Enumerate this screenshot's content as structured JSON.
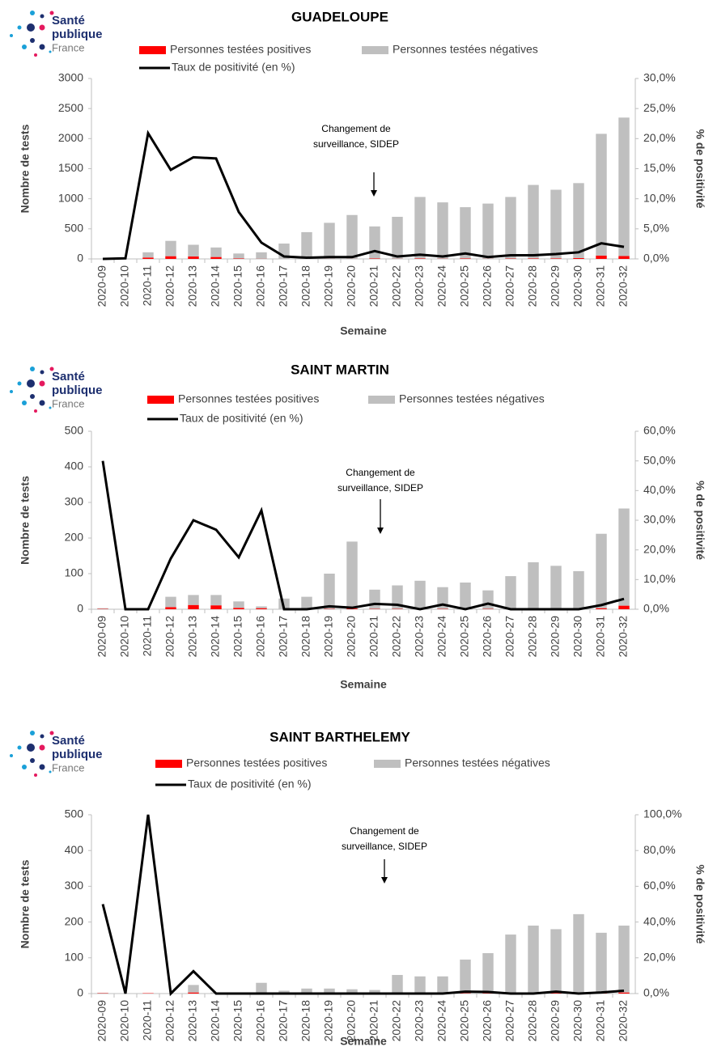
{
  "logo": [
    "Santé",
    "publique",
    "France"
  ],
  "chart_data": [
    {
      "type": "bar",
      "title": "GUADELOUPE",
      "x_label": "Semaine",
      "y_label": "Nombre de tests",
      "y2_label": "% de positivité",
      "annotation": [
        "Changement de",
        "surveillance, SIDEP"
      ],
      "categories": [
        "2020-09",
        "2020-10",
        "2020-11",
        "2020-12",
        "2020-13",
        "2020-14",
        "2020-15",
        "2020-16",
        "2020-17",
        "2020-18",
        "2020-19",
        "2020-20",
        "2020-21",
        "2020-22",
        "2020-23",
        "2020-24",
        "2020-25",
        "2020-26",
        "2020-27",
        "2020-28",
        "2020-29",
        "2020-30",
        "2020-31",
        "2020-32"
      ],
      "ylim": [
        0,
        3000
      ],
      "yticks": [
        0,
        500,
        1000,
        1500,
        2000,
        2500,
        3000
      ],
      "y2lim": [
        0,
        30
      ],
      "y2ticks": [
        {
          "value": 0,
          "label": "0,0%"
        },
        {
          "value": 5,
          "label": "5,0%"
        },
        {
          "value": 10,
          "label": "10,0%"
        },
        {
          "value": 15,
          "label": "15,0%"
        },
        {
          "value": 20,
          "label": "20,0%"
        },
        {
          "value": 25,
          "label": "25,0%"
        },
        {
          "value": 30,
          "label": "30,0%"
        }
      ],
      "series": [
        {
          "name": "Personnes testées positives",
          "type": "bar",
          "color": "#ff0000",
          "values": [
            0,
            0,
            23,
            45,
            40,
            32,
            7,
            3,
            1,
            1,
            2,
            2,
            7,
            3,
            7,
            4,
            8,
            3,
            6,
            8,
            9,
            14,
            55,
            47
          ]
        },
        {
          "name": "Personnes testées négatives",
          "type": "bar",
          "color": "#bfbfbf",
          "values": [
            0,
            5,
            87,
            255,
            195,
            158,
            83,
            107,
            254,
            444,
            598,
            728,
            533,
            697,
            1023,
            936,
            852,
            917,
            1024,
            1222,
            1141,
            1246,
            2025,
            2303
          ]
        },
        {
          "name": "Taux de positivité (en %)",
          "type": "line",
          "axis": "y2",
          "color": "#000000",
          "values": [
            0,
            0.1,
            20.9,
            14.8,
            16.9,
            16.7,
            7.8,
            2.7,
            0.4,
            0.2,
            0.3,
            0.3,
            1.3,
            0.4,
            0.7,
            0.4,
            0.9,
            0.3,
            0.6,
            0.6,
            0.8,
            1.1,
            2.6,
            2.0
          ]
        }
      ]
    },
    {
      "type": "bar",
      "title": "SAINT MARTIN",
      "x_label": "Semaine",
      "y_label": "Nombre de tests",
      "y2_label": "% de positivité",
      "annotation": [
        "Changement de",
        "surveillance, SIDEP"
      ],
      "categories": [
        "2020-09",
        "2020-10",
        "2020-11",
        "2020-12",
        "2020-13",
        "2020-14",
        "2020-15",
        "2020-16",
        "2020-17",
        "2020-18",
        "2020-19",
        "2020-20",
        "2020-21",
        "2020-22",
        "2020-23",
        "2020-24",
        "2020-25",
        "2020-26",
        "2020-27",
        "2020-28",
        "2020-29",
        "2020-30",
        "2020-31",
        "2020-32"
      ],
      "ylim": [
        0,
        500
      ],
      "yticks": [
        0,
        100,
        200,
        300,
        400,
        500
      ],
      "y2lim": [
        0,
        60
      ],
      "y2ticks": [
        {
          "value": 0,
          "label": "0,0%"
        },
        {
          "value": 10,
          "label": "10,0%"
        },
        {
          "value": 20,
          "label": "20,0%"
        },
        {
          "value": 30,
          "label": "30,0%"
        },
        {
          "value": 40,
          "label": "40,0%"
        },
        {
          "value": 50,
          "label": "50,0%"
        },
        {
          "value": 60,
          "label": "60,0%"
        }
      ],
      "series": [
        {
          "name": "Personnes testées positives",
          "type": "bar",
          "color": "#ff0000",
          "values": [
            1,
            0,
            0,
            6,
            12,
            11,
            4,
            3,
            0,
            0,
            1,
            2,
            1,
            1,
            0,
            1,
            0,
            1,
            0,
            0,
            0,
            0,
            3,
            10
          ]
        },
        {
          "name": "Personnes testées négatives",
          "type": "bar",
          "color": "#bfbfbf",
          "values": [
            2,
            0,
            0,
            29,
            28,
            29,
            18,
            5,
            30,
            35,
            99,
            188,
            54,
            66,
            80,
            61,
            75,
            52,
            93,
            132,
            122,
            107,
            209,
            273
          ]
        },
        {
          "name": "Taux de positivité (en %)",
          "type": "line",
          "axis": "y2",
          "color": "#000000",
          "values": [
            50,
            0,
            0,
            17.1,
            30,
            26.8,
            17.5,
            33.3,
            0,
            0,
            1,
            0.5,
            1.8,
            1.5,
            0,
            1.6,
            0,
            1.9,
            0,
            0,
            0,
            0,
            1.4,
            3.5
          ]
        }
      ]
    },
    {
      "type": "bar",
      "title": "SAINT BARTHELEMY",
      "x_label": "Semaine",
      "y_label": "Nombre de tests",
      "y2_label": "% de positivité",
      "annotation": [
        "Changement de",
        "surveillance, SIDEP"
      ],
      "categories": [
        "2020-09",
        "2020-10",
        "2020-11",
        "2020-12",
        "2020-13",
        "2020-14",
        "2020-15",
        "2020-16",
        "2020-17",
        "2020-18",
        "2020-19",
        "2020-20",
        "2020-21",
        "2020-22",
        "2020-23",
        "2020-24",
        "2020-25",
        "2020-26",
        "2020-27",
        "2020-28",
        "2020-29",
        "2020-30",
        "2020-31",
        "2020-32"
      ],
      "ylim": [
        0,
        500
      ],
      "yticks": [
        0,
        100,
        200,
        300,
        400,
        500
      ],
      "y2lim": [
        0,
        100
      ],
      "y2ticks": [
        {
          "value": 0,
          "label": "0,0%"
        },
        {
          "value": 20,
          "label": "20,0%"
        },
        {
          "value": 40,
          "label": "40,0%"
        },
        {
          "value": 60,
          "label": "60,0%"
        },
        {
          "value": 80,
          "label": "80,0%"
        },
        {
          "value": 100,
          "label": "100,0%"
        }
      ],
      "series": [
        {
          "name": "Personnes testées positives",
          "type": "bar",
          "color": "#ff0000",
          "values": [
            1,
            0,
            1,
            0,
            3,
            0,
            0,
            0,
            0,
            0,
            0,
            0,
            0,
            0,
            0,
            0,
            1,
            1,
            0,
            0,
            2,
            0,
            1,
            3
          ]
        },
        {
          "name": "Personnes testées négatives",
          "type": "bar",
          "color": "#bfbfbf",
          "values": [
            1,
            1,
            0,
            1,
            21,
            3,
            3,
            30,
            8,
            14,
            14,
            12,
            10,
            52,
            48,
            48,
            94,
            112,
            165,
            190,
            178,
            222,
            169,
            187
          ]
        },
        {
          "name": "Taux de positivité (en %)",
          "type": "line",
          "axis": "y2",
          "color": "#000000",
          "values": [
            50,
            0,
            100,
            0,
            12.5,
            0,
            0,
            0,
            0,
            0,
            0,
            0,
            0,
            0,
            0,
            0,
            1.1,
            0.9,
            0,
            0,
            1.1,
            0,
            0.6,
            1.6
          ]
        }
      ]
    }
  ]
}
